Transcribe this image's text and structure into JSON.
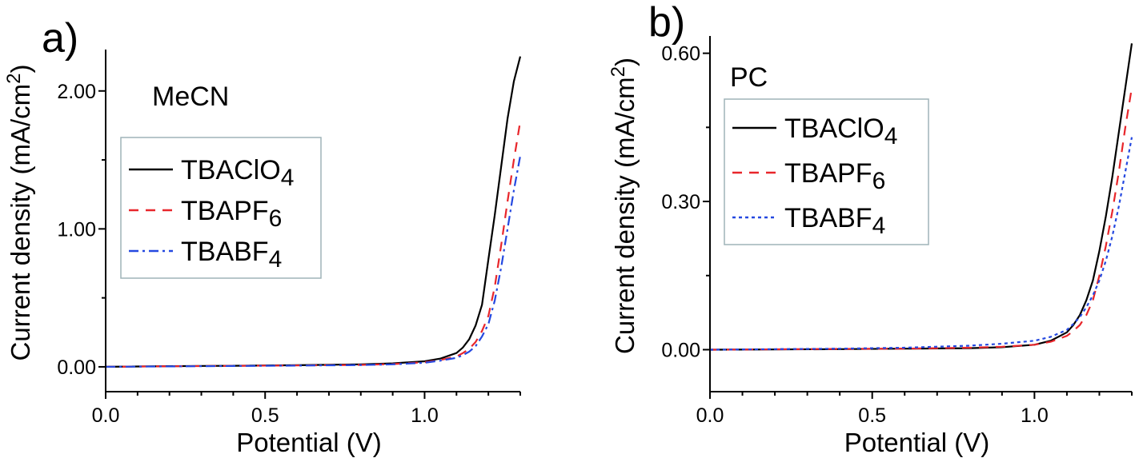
{
  "chart_data": [
    {
      "type": "line",
      "panel_label": "a)",
      "annotation": "MeCN",
      "xlabel": "Potential (V)",
      "ylabel_main": "Current density (mA/cm",
      "ylabel_sup": "2",
      "ylabel_close": ")",
      "xlim": [
        0.0,
        1.3
      ],
      "ylim": [
        -0.18,
        2.3
      ],
      "xticks": [
        0.0,
        0.5,
        1.0
      ],
      "xtick_labels": [
        "0.0",
        "0.5",
        "1.0"
      ],
      "yticks": [
        0.0,
        1.0,
        2.0
      ],
      "ytick_labels": [
        "0.00",
        "1.00",
        "2.00"
      ],
      "legend_position": "center-left",
      "series": [
        {
          "name": "TBAClO",
          "name_sub": "4",
          "color": "#000000",
          "dash": "",
          "x": [
            0.0,
            0.2,
            0.4,
            0.6,
            0.8,
            0.9,
            1.0,
            1.05,
            1.1,
            1.12,
            1.14,
            1.16,
            1.18,
            1.2,
            1.22,
            1.24,
            1.26,
            1.28,
            1.3
          ],
          "y": [
            0.0,
            0.005,
            0.008,
            0.012,
            0.018,
            0.025,
            0.04,
            0.06,
            0.1,
            0.14,
            0.2,
            0.3,
            0.45,
            0.78,
            1.1,
            1.45,
            1.8,
            2.07,
            2.25
          ]
        },
        {
          "name": "TBAPF",
          "name_sub": "6",
          "color": "#e8262b",
          "dash": "12,9",
          "x": [
            0.0,
            0.2,
            0.4,
            0.6,
            0.8,
            0.9,
            1.0,
            1.05,
            1.1,
            1.12,
            1.14,
            1.16,
            1.18,
            1.2,
            1.22,
            1.24,
            1.26,
            1.28,
            1.3
          ],
          "y": [
            0.0,
            0.004,
            0.007,
            0.01,
            0.014,
            0.02,
            0.033,
            0.05,
            0.075,
            0.1,
            0.13,
            0.18,
            0.26,
            0.37,
            0.58,
            0.88,
            1.2,
            1.5,
            1.78
          ]
        },
        {
          "name": "TBABF",
          "name_sub": "4",
          "color": "#2448e0",
          "dash": "12,5,3,5",
          "x": [
            0.0,
            0.2,
            0.4,
            0.6,
            0.8,
            0.9,
            1.0,
            1.05,
            1.1,
            1.12,
            1.14,
            1.16,
            1.18,
            1.2,
            1.22,
            1.24,
            1.26,
            1.28,
            1.3
          ],
          "y": [
            0.0,
            0.003,
            0.006,
            0.009,
            0.013,
            0.018,
            0.03,
            0.045,
            0.065,
            0.085,
            0.11,
            0.15,
            0.22,
            0.31,
            0.48,
            0.72,
            1.0,
            1.28,
            1.53
          ]
        }
      ]
    },
    {
      "type": "line",
      "panel_label": "b)",
      "annotation": "PC",
      "xlabel": "Potential (V)",
      "ylabel_main": "Current density (mA/cm",
      "ylabel_sup": "2",
      "ylabel_close": ")",
      "xlim": [
        0.0,
        1.3
      ],
      "ylim": [
        -0.085,
        0.635
      ],
      "xticks": [
        0.0,
        0.5,
        1.0
      ],
      "xtick_labels": [
        "0.0",
        "0.5",
        "1.0"
      ],
      "yticks": [
        0.0,
        0.3,
        0.6
      ],
      "ytick_labels": [
        "0.00",
        "0.30",
        "0.60"
      ],
      "legend_position": "top-left",
      "series": [
        {
          "name": "TBAClO",
          "name_sub": "4",
          "color": "#000000",
          "dash": "",
          "x": [
            0.0,
            0.2,
            0.4,
            0.6,
            0.8,
            0.9,
            1.0,
            1.05,
            1.1,
            1.12,
            1.14,
            1.16,
            1.18,
            1.2,
            1.22,
            1.24,
            1.26,
            1.28,
            1.3
          ],
          "y": [
            0.0,
            0.0005,
            0.001,
            0.002,
            0.003,
            0.005,
            0.01,
            0.018,
            0.035,
            0.05,
            0.07,
            0.1,
            0.14,
            0.2,
            0.27,
            0.35,
            0.44,
            0.53,
            0.62
          ]
        },
        {
          "name": "TBAPF",
          "name_sub": "6",
          "color": "#e8262b",
          "dash": "12,9",
          "x": [
            0.0,
            0.2,
            0.4,
            0.6,
            0.8,
            0.9,
            1.0,
            1.05,
            1.1,
            1.12,
            1.14,
            1.16,
            1.18,
            1.2,
            1.22,
            1.24,
            1.26,
            1.28,
            1.3
          ],
          "y": [
            0.0,
            0.0008,
            0.0015,
            0.002,
            0.004,
            0.006,
            0.01,
            0.016,
            0.028,
            0.038,
            0.05,
            0.07,
            0.1,
            0.15,
            0.21,
            0.28,
            0.36,
            0.45,
            0.53
          ]
        },
        {
          "name": "TBABF",
          "name_sub": "4",
          "color": "#2448e0",
          "dash": "4,4",
          "x": [
            0.0,
            0.2,
            0.4,
            0.6,
            0.8,
            0.9,
            1.0,
            1.05,
            1.1,
            1.12,
            1.14,
            1.16,
            1.18,
            1.2,
            1.22,
            1.24,
            1.26,
            1.28,
            1.3
          ],
          "y": [
            0.0,
            0.001,
            0.002,
            0.004,
            0.008,
            0.012,
            0.018,
            0.026,
            0.04,
            0.052,
            0.066,
            0.086,
            0.11,
            0.14,
            0.18,
            0.23,
            0.29,
            0.36,
            0.43
          ]
        }
      ]
    }
  ]
}
